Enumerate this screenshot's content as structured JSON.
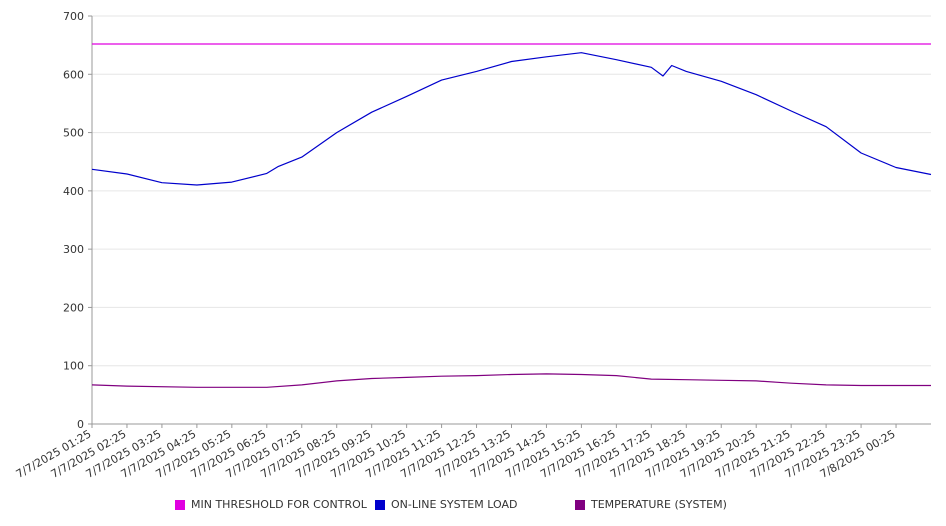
{
  "chart_data": {
    "type": "line",
    "ylim": [
      0,
      700
    ],
    "yticks": [
      0,
      100,
      200,
      300,
      400,
      500,
      600,
      700
    ],
    "grid": true,
    "legend_position": "bottom",
    "categories": [
      "7/7/2025 01:25",
      "7/7/2025 02:25",
      "7/7/2025 03:25",
      "7/7/2025 04:25",
      "7/7/2025 05:25",
      "7/7/2025 06:25",
      "7/7/2025 07:25",
      "7/7/2025 08:25",
      "7/7/2025 09:25",
      "7/7/2025 10:25",
      "7/7/2025 11:25",
      "7/7/2025 12:25",
      "7/7/2025 13:25",
      "7/7/2025 14:25",
      "7/7/2025 15:25",
      "7/7/2025 16:25",
      "7/7/2025 17:25",
      "7/7/2025 18:25",
      "7/7/2025 19:25",
      "7/7/2025 20:25",
      "7/7/2025 21:25",
      "7/7/2025 22:25",
      "7/7/2025 23:25",
      "7/8/2025 00:25"
    ],
    "x_end": "7/8/2025 01:25",
    "series": [
      {
        "name": "MIN THRESHOLD FOR CONTROL",
        "color": "#e000e0",
        "points": [
          [
            "7/7/2025 01:25",
            652
          ],
          [
            "7/8/2025 01:25",
            652
          ]
        ]
      },
      {
        "name": "ON-LINE SYSTEM LOAD",
        "color": "#0000cc",
        "points": [
          [
            "7/7/2025 01:25",
            437
          ],
          [
            "7/7/2025 02:25",
            429
          ],
          [
            "7/7/2025 03:25",
            414
          ],
          [
            "7/7/2025 04:25",
            410
          ],
          [
            "7/7/2025 05:25",
            415
          ],
          [
            "7/7/2025 06:25",
            430
          ],
          [
            "7/7/2025 06:45",
            442
          ],
          [
            "7/7/2025 07:25",
            458
          ],
          [
            "7/7/2025 08:25",
            500
          ],
          [
            "7/7/2025 09:25",
            535
          ],
          [
            "7/7/2025 10:25",
            562
          ],
          [
            "7/7/2025 11:25",
            590
          ],
          [
            "7/7/2025 12:25",
            605
          ],
          [
            "7/7/2025 13:25",
            622
          ],
          [
            "7/7/2025 14:25",
            630
          ],
          [
            "7/7/2025 15:25",
            637
          ],
          [
            "7/7/2025 16:25",
            625
          ],
          [
            "7/7/2025 17:25",
            612
          ],
          [
            "7/7/2025 17:45",
            597
          ],
          [
            "7/7/2025 18:00",
            615
          ],
          [
            "7/7/2025 18:25",
            605
          ],
          [
            "7/7/2025 19:25",
            588
          ],
          [
            "7/7/2025 20:25",
            565
          ],
          [
            "7/7/2025 21:25",
            537
          ],
          [
            "7/7/2025 22:25",
            510
          ],
          [
            "7/7/2025 23:25",
            465
          ],
          [
            "7/8/2025 00:25",
            440
          ],
          [
            "7/8/2025 01:25",
            428
          ]
        ]
      },
      {
        "name": "TEMPERATURE (SYSTEM)",
        "color": "#800080",
        "points": [
          [
            "7/7/2025 01:25",
            67
          ],
          [
            "7/7/2025 02:25",
            65
          ],
          [
            "7/7/2025 04:25",
            63
          ],
          [
            "7/7/2025 06:25",
            63
          ],
          [
            "7/7/2025 07:25",
            67
          ],
          [
            "7/7/2025 08:25",
            74
          ],
          [
            "7/7/2025 09:25",
            78
          ],
          [
            "7/7/2025 10:25",
            80
          ],
          [
            "7/7/2025 11:25",
            82
          ],
          [
            "7/7/2025 12:25",
            83
          ],
          [
            "7/7/2025 13:25",
            85
          ],
          [
            "7/7/2025 14:25",
            86
          ],
          [
            "7/7/2025 15:25",
            85
          ],
          [
            "7/7/2025 16:25",
            83
          ],
          [
            "7/7/2025 17:25",
            77
          ],
          [
            "7/7/2025 18:25",
            76
          ],
          [
            "7/7/2025 19:25",
            75
          ],
          [
            "7/7/2025 20:25",
            74
          ],
          [
            "7/7/2025 21:25",
            70
          ],
          [
            "7/7/2025 22:25",
            67
          ],
          [
            "7/7/2025 23:25",
            66
          ],
          [
            "7/8/2025 01:25",
            66
          ]
        ]
      }
    ]
  }
}
